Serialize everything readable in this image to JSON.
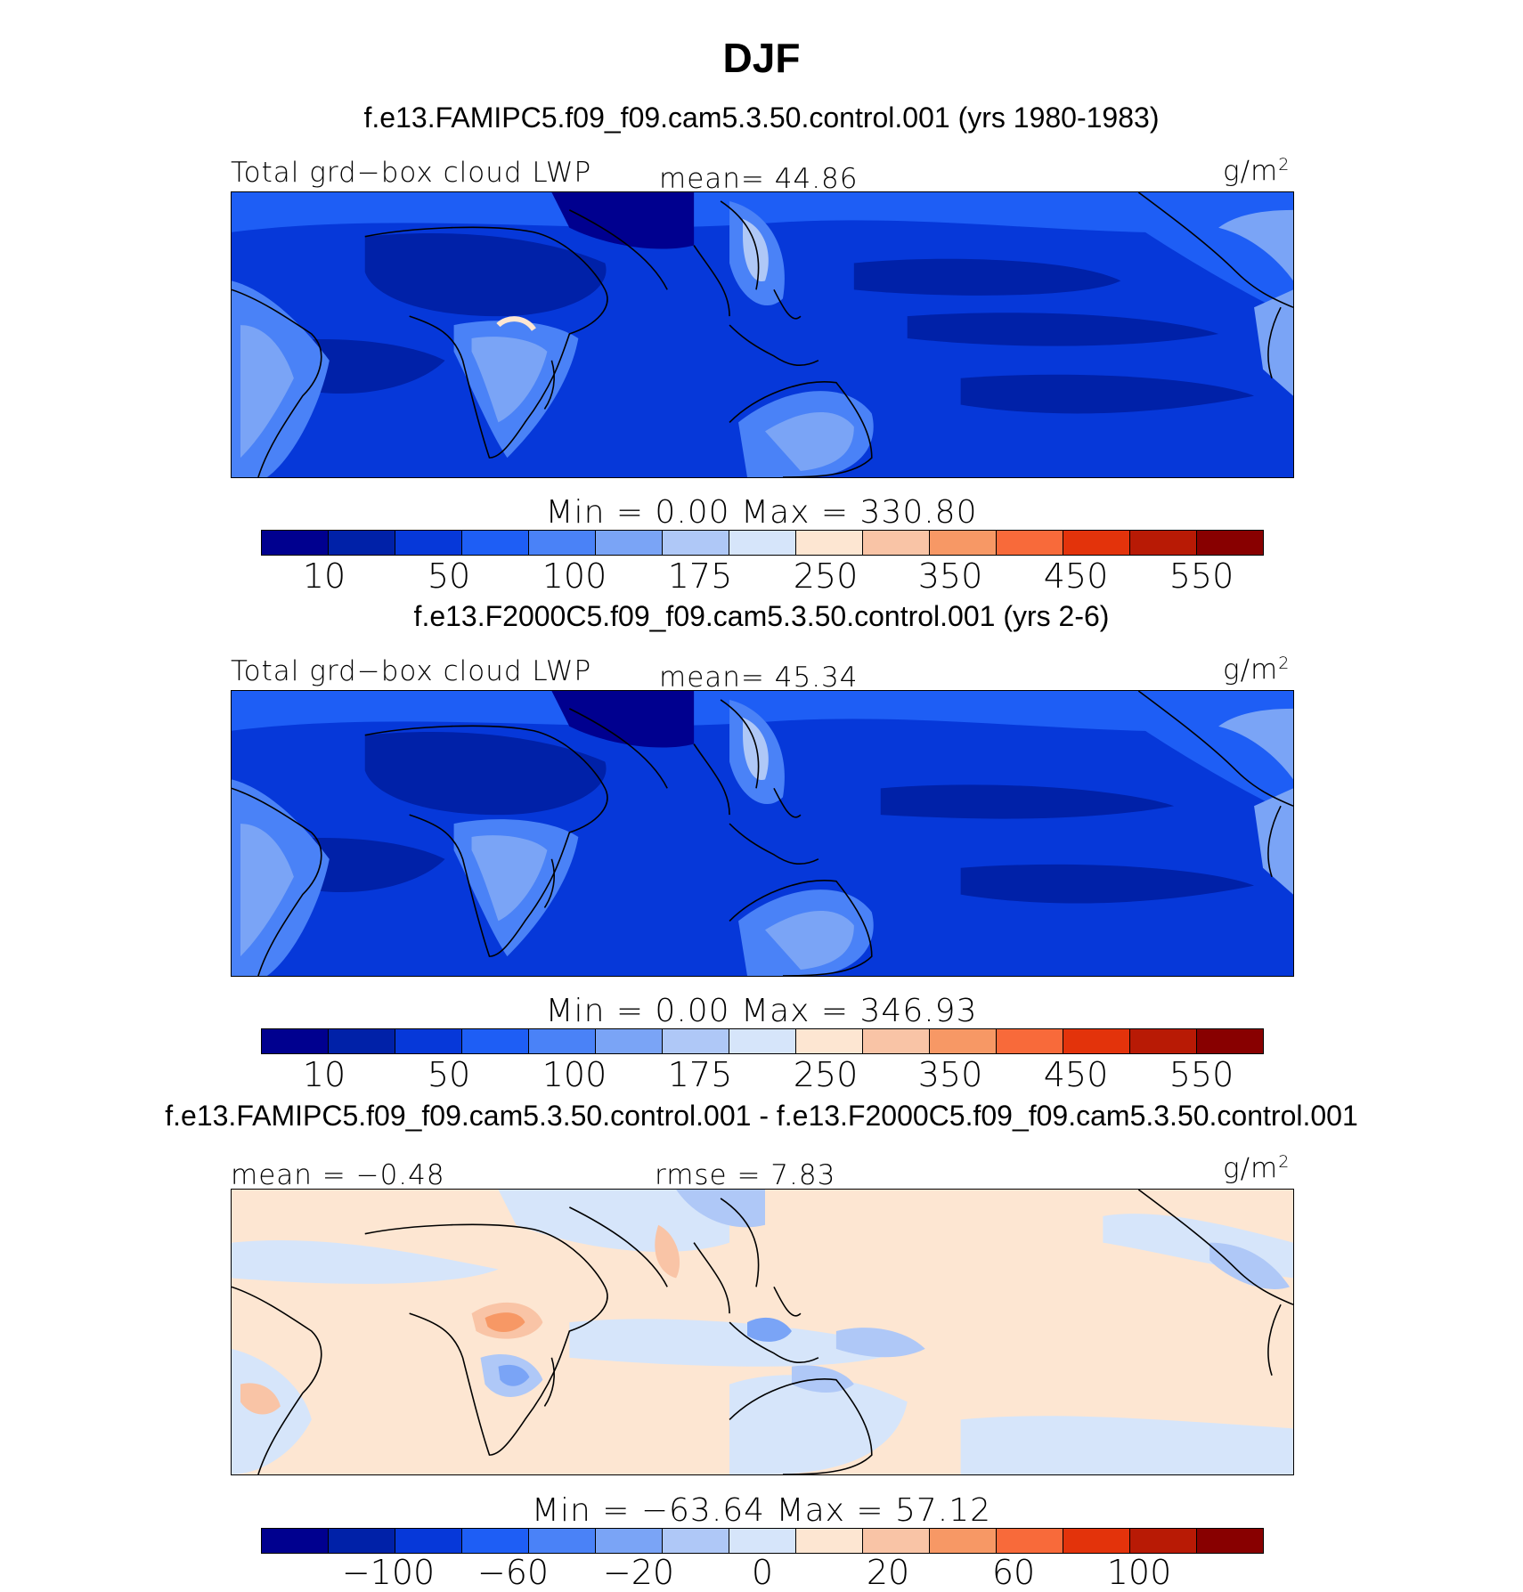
{
  "title": "DJF",
  "colors": [
    "#00008f",
    "#0021a8",
    "#0638d9",
    "#1e5ef5",
    "#4a82f7",
    "#7aa4f6",
    "#afc8f7",
    "#d6e5fa",
    "#fde6d2",
    "#f9c4a6",
    "#f79865",
    "#f86a3a",
    "#e3330b",
    "#b81a05",
    "#880000"
  ],
  "panels": [
    {
      "case": "f.e13.FAMIPC5.f09_f09.cam5.3.50.control.001 (yrs 1980-1983)",
      "left_label": "Total grd−box cloud LWP",
      "center_label": "mean=   44.86",
      "units_base": "g/m",
      "units_exp": "2",
      "minmax": "Min  =     0.00  Max  =  330.80",
      "ticks": [
        "10",
        "50",
        "100",
        "175",
        "250",
        "350",
        "450",
        "550"
      ]
    },
    {
      "case": "f.e13.F2000C5.f09_f09.cam5.3.50.control.001 (yrs 2-6)",
      "left_label": "Total grd−box cloud LWP",
      "center_label": "mean=   45.34",
      "units_base": "g/m",
      "units_exp": "2",
      "minmax": "Min  =     0.00  Max  =  346.93",
      "ticks": [
        "10",
        "50",
        "100",
        "175",
        "250",
        "350",
        "450",
        "550"
      ]
    },
    {
      "case": "f.e13.FAMIPC5.f09_f09.cam5.3.50.control.001 - f.e13.F2000C5.f09_f09.cam5.3.50.control.001",
      "left_label": "mean  =   −0.48",
      "center_label": "rmse  =    7.83",
      "units_base": "g/m",
      "units_exp": "2",
      "minmax": "Min  =  −63.64  Max  =    57.12",
      "ticks": [
        "−100",
        "−60",
        "−20",
        "0",
        "20",
        "60",
        "100"
      ]
    }
  ]
}
